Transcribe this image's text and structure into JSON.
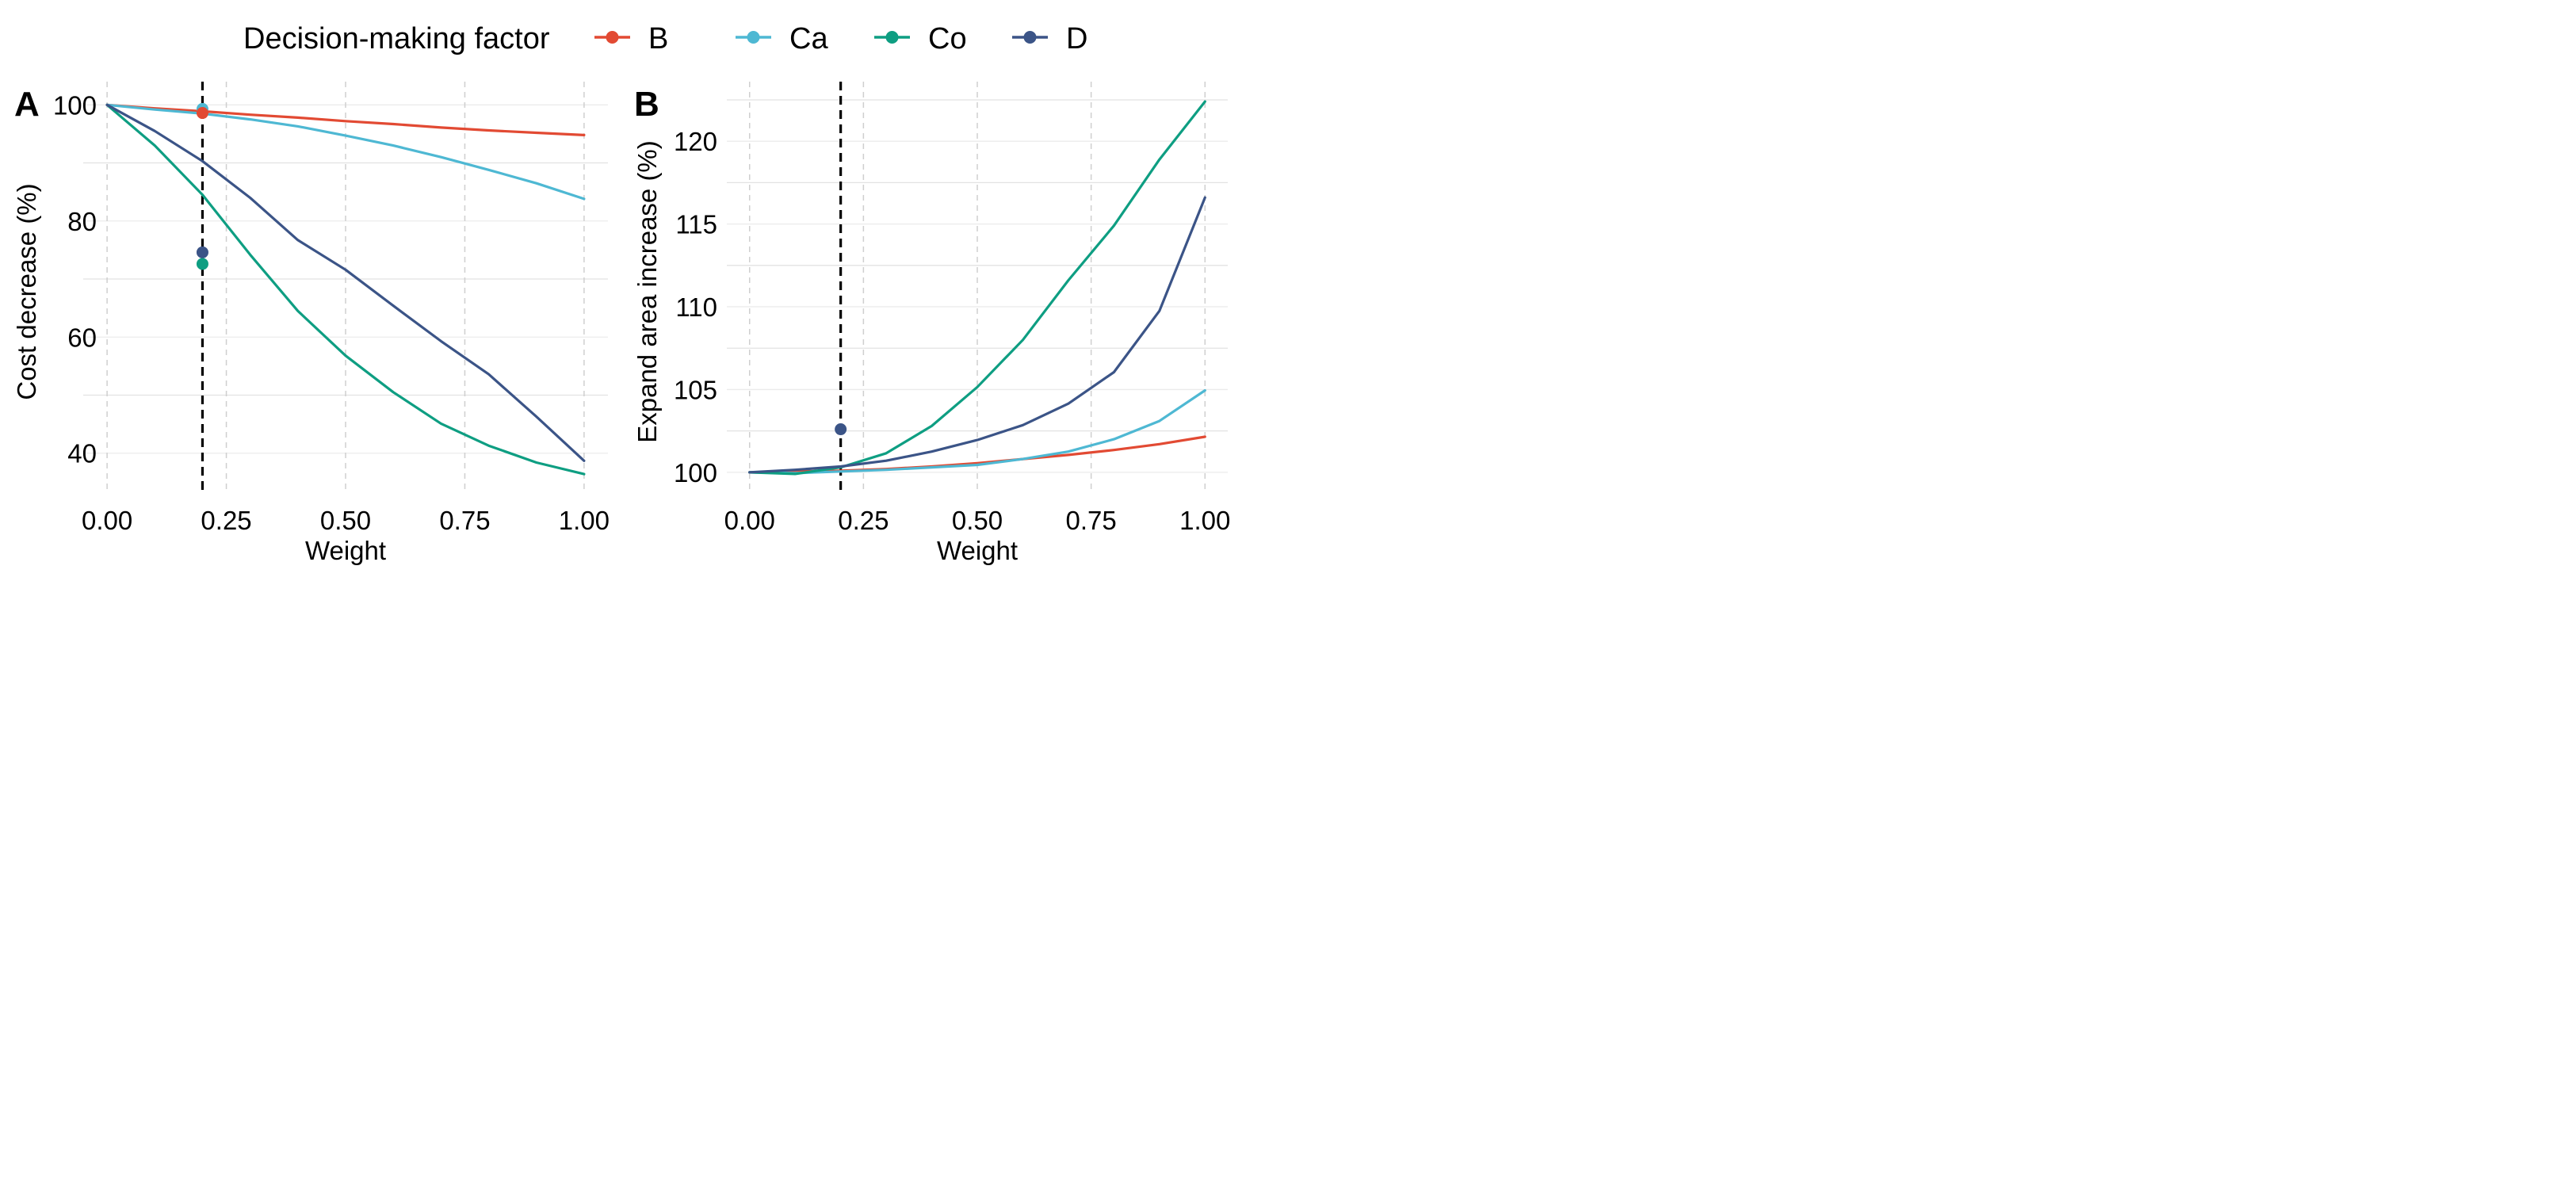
{
  "legend": {
    "title": "Decision-making factor",
    "entries": [
      {
        "label": "B",
        "color": "#E24A33"
      },
      {
        "label": "Ca",
        "color": "#4EB8D3"
      },
      {
        "label": "Co",
        "color": "#0E9E82"
      },
      {
        "label": "D",
        "color": "#3B5487"
      }
    ]
  },
  "chart_data": [
    {
      "type": "line",
      "panel_label": "A",
      "xlabel": "Weight",
      "ylabel": "Cost decrease (%)",
      "xlim": [
        -0.05,
        1.05
      ],
      "ylim": [
        33,
        104
      ],
      "xticks": [
        0,
        0.25,
        0.5,
        0.75,
        1
      ],
      "xtick_labels": [
        "0.00",
        "0.25",
        "0.50",
        "0.75",
        "1.00"
      ],
      "yticks": [
        40,
        60,
        80,
        100
      ],
      "ytick_labels": [
        "40",
        "60",
        "80",
        "100"
      ],
      "y_minor_grid": [
        50,
        70,
        90
      ],
      "grid": true,
      "vline_x": 0.2,
      "x": [
        0,
        0.1,
        0.2,
        0.3,
        0.4,
        0.5,
        0.6,
        0.7,
        0.8,
        0.9,
        1.0
      ],
      "series": [
        {
          "name": "B",
          "color": "#E24A33",
          "values": [
            100,
            99.4,
            98.9,
            98.3,
            97.8,
            97.2,
            96.7,
            96.1,
            95.6,
            95.2,
            94.8
          ]
        },
        {
          "name": "Ca",
          "color": "#4EB8D3",
          "values": [
            100,
            99.2,
            98.5,
            97.5,
            96.3,
            94.7,
            93.0,
            91.0,
            88.8,
            86.5,
            83.8
          ]
        },
        {
          "name": "Co",
          "color": "#0E9E82",
          "values": [
            100,
            93.0,
            84.5,
            74.2,
            64.5,
            56.8,
            50.5,
            45.1,
            41.3,
            38.4,
            36.4
          ]
        },
        {
          "name": "D",
          "color": "#3B5487",
          "values": [
            100,
            95.5,
            90.3,
            84.0,
            76.7,
            71.6,
            65.4,
            59.3,
            53.6,
            46.3,
            38.7
          ]
        }
      ],
      "points": [
        {
          "series": "Ca",
          "x": 0.2,
          "y": 99.3,
          "color": "#4EB8D3"
        },
        {
          "series": "B",
          "x": 0.2,
          "y": 98.6,
          "color": "#E24A33"
        },
        {
          "series": "D",
          "x": 0.2,
          "y": 74.6,
          "color": "#3B5487"
        },
        {
          "series": "Co",
          "x": 0.2,
          "y": 72.6,
          "color": "#0E9E82"
        }
      ]
    },
    {
      "type": "line",
      "panel_label": "B",
      "xlabel": "Weight",
      "ylabel": "Expand area increase (%)",
      "xlim": [
        -0.05,
        1.05
      ],
      "ylim": [
        98.7,
        123.6
      ],
      "xticks": [
        0,
        0.25,
        0.5,
        0.75,
        1
      ],
      "xtick_labels": [
        "0.00",
        "0.25",
        "0.50",
        "0.75",
        "1.00"
      ],
      "yticks": [
        100,
        105,
        110,
        115,
        120
      ],
      "ytick_labels": [
        "100",
        "105",
        "110",
        "115",
        "120"
      ],
      "y_minor_grid": [
        102.5,
        107.5,
        112.5,
        117.5,
        122.5
      ],
      "grid": true,
      "vline_x": 0.2,
      "x": [
        0,
        0.1,
        0.2,
        0.3,
        0.4,
        0.5,
        0.6,
        0.7,
        0.8,
        0.9,
        1.0
      ],
      "series": [
        {
          "name": "B",
          "color": "#E24A33",
          "values": [
            100,
            100.05,
            100.1,
            100.2,
            100.35,
            100.55,
            100.8,
            101.05,
            101.35,
            101.7,
            102.15
          ]
        },
        {
          "name": "Ca",
          "color": "#4EB8D3",
          "values": [
            100,
            99.95,
            100.05,
            100.15,
            100.3,
            100.45,
            100.8,
            101.25,
            102.0,
            103.1,
            104.95
          ]
        },
        {
          "name": "Co",
          "color": "#0E9E82",
          "values": [
            100,
            99.9,
            100.3,
            101.15,
            102.8,
            105.15,
            108.0,
            111.6,
            114.9,
            118.9,
            122.4
          ]
        },
        {
          "name": "D",
          "color": "#3B5487",
          "values": [
            100,
            100.15,
            100.35,
            100.7,
            101.25,
            101.95,
            102.85,
            104.15,
            106.05,
            109.75,
            116.6
          ]
        }
      ],
      "points": [
        {
          "series": "D",
          "x": 0.2,
          "y": 102.6,
          "color": "#3B5487"
        }
      ]
    }
  ]
}
